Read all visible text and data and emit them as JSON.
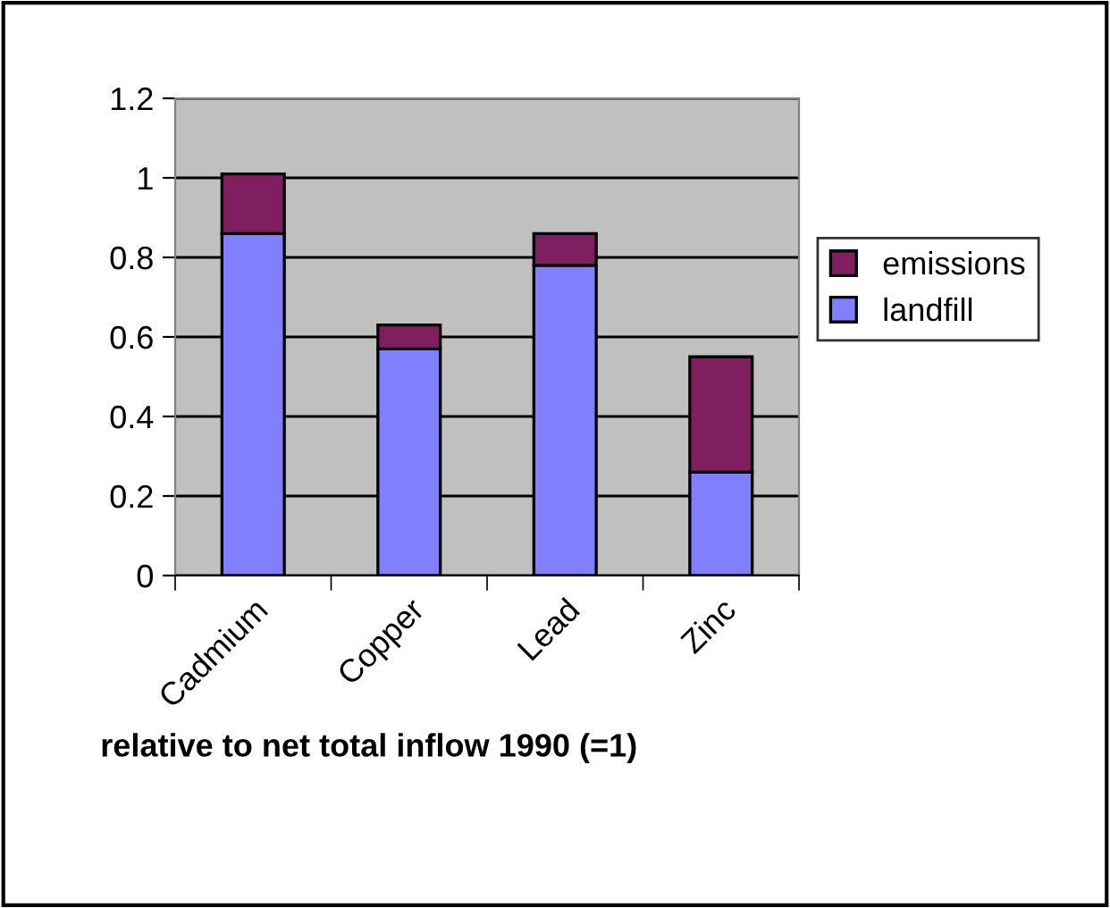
{
  "chart_data": {
    "type": "bar",
    "stacked": true,
    "categories": [
      "Cadmium",
      "Copper",
      "Lead",
      "Zinc"
    ],
    "series": [
      {
        "name": "landfill",
        "color": "#8080ff",
        "values": [
          0.86,
          0.57,
          0.78,
          0.26
        ]
      },
      {
        "name": "emissions",
        "color": "#7f1f5f",
        "values": [
          0.15,
          0.06,
          0.08,
          0.29
        ]
      }
    ],
    "xlabel": "relative to net total inflow 1990 (=1)",
    "ylim": [
      0,
      1.2
    ],
    "yticks": [
      0,
      0.2,
      0.4,
      0.6,
      0.8,
      1,
      1.2
    ],
    "grid": "y",
    "legend": "right"
  }
}
